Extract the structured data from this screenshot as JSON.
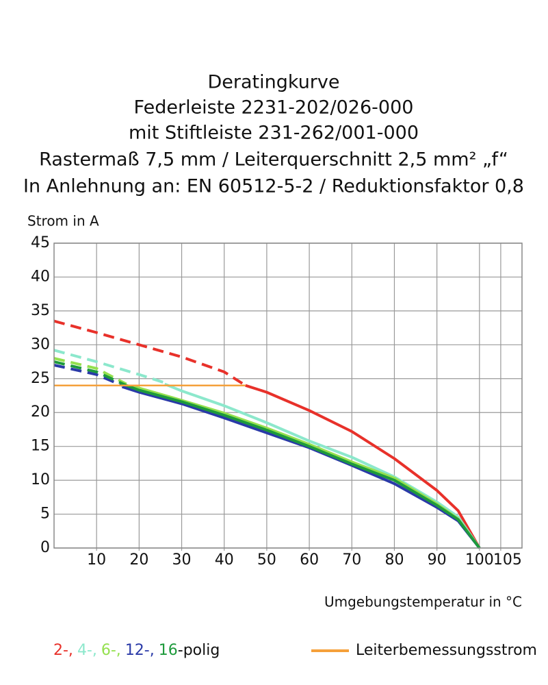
{
  "chart_data": {
    "type": "line",
    "title": [
      "Deratingkurve",
      "Federleiste 2231-202/026-000",
      "mit Stiftleiste 231-262/001-000",
      "Rastermaß 7,5 mm / Leiterquerschnitt 2,5 mm² „f“",
      "In Anlehnung an: EN 60512-5-2 / Reduktionsfaktor 0,8"
    ],
    "ylabel": "Strom in A",
    "xlabel": "Umgebungstemperatur in °C",
    "xlim": [
      0,
      110
    ],
    "ylim": [
      0,
      45
    ],
    "xticks": [
      10,
      20,
      30,
      40,
      50,
      60,
      70,
      80,
      90,
      100,
      105
    ],
    "yticks": [
      0,
      5,
      10,
      15,
      20,
      25,
      30,
      35,
      40,
      45
    ],
    "grid": true,
    "legend_suffix": "-polig",
    "series": [
      {
        "name": "2-,",
        "color": "#e8312a",
        "dash_x": [
          0,
          10,
          20,
          30,
          40,
          45
        ],
        "dash_values": [
          33.5,
          31.8,
          30,
          28.2,
          26,
          24
        ],
        "x": [
          45,
          50,
          60,
          70,
          80,
          90,
          95,
          100
        ],
        "values": [
          24,
          23,
          20.3,
          17.2,
          13.2,
          8.5,
          5.5,
          0
        ]
      },
      {
        "name": "4-,",
        "color": "#8ce8cc",
        "dash_x": [
          0,
          10,
          20,
          26
        ],
        "dash_values": [
          29.2,
          27.5,
          25.6,
          24.4
        ],
        "x": [
          26,
          30,
          40,
          50,
          60,
          70,
          80,
          90,
          95,
          100
        ],
        "values": [
          24.2,
          23.2,
          21,
          18.5,
          15.8,
          13.4,
          10.5,
          6.8,
          4.6,
          0
        ]
      },
      {
        "name": "6-,",
        "color": "#94e04e",
        "dash_x": [
          0,
          10,
          17
        ],
        "dash_values": [
          28,
          26.5,
          24.2
        ],
        "x": [
          17,
          20,
          30,
          40,
          50,
          60,
          70,
          80,
          90,
          95,
          100
        ],
        "values": [
          24,
          23.6,
          21.8,
          19.9,
          17.7,
          15.3,
          12.7,
          10.3,
          6.5,
          4.3,
          0
        ]
      },
      {
        "name": "12-,",
        "color": "#2a3aa8",
        "dash_x": [
          0,
          10,
          16
        ],
        "dash_values": [
          27,
          25.6,
          24
        ],
        "x": [
          16,
          20,
          30,
          40,
          50,
          60,
          70,
          80,
          90,
          95,
          100
        ],
        "values": [
          23.8,
          23,
          21.3,
          19.2,
          17,
          14.8,
          12.2,
          9.5,
          6,
          4,
          0
        ]
      },
      {
        "name": "16",
        "color": "#1e9a3c",
        "dash_x": [
          0,
          10,
          17
        ],
        "dash_values": [
          27.5,
          26,
          24
        ],
        "x": [
          17,
          20,
          30,
          40,
          50,
          60,
          70,
          80,
          90,
          95,
          100
        ],
        "values": [
          24,
          23.3,
          21.6,
          19.6,
          17.4,
          15,
          12.4,
          10,
          6.3,
          4.2,
          0
        ]
      },
      {
        "name": "Leiterbemessungsstrom",
        "color": "#f5a03a",
        "x": [
          0,
          45
        ],
        "values": [
          24,
          24
        ]
      }
    ]
  }
}
